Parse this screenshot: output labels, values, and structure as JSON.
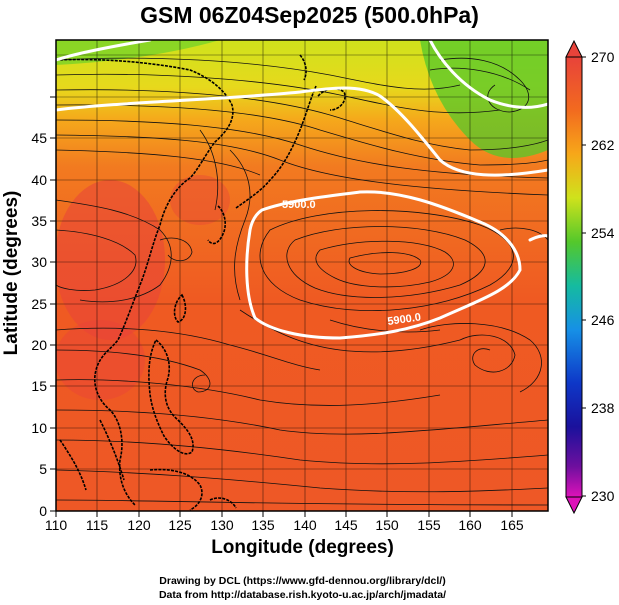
{
  "title": "GSM 06Z04Sep2025 (500.0hPa)",
  "x_axis": {
    "label": "Longitude (degrees)",
    "ticks": [
      "110",
      "115",
      "120",
      "125",
      "130",
      "135",
      "140",
      "145",
      "150",
      "155",
      "160",
      "165"
    ]
  },
  "y_axis": {
    "label": "Latitude  (degrees)",
    "ticks": [
      "0",
      "5",
      "10",
      "15",
      "20",
      "25",
      "30",
      "35",
      "40",
      "45"
    ]
  },
  "colorbar": {
    "ticks": [
      "270",
      "262",
      "254",
      "246",
      "238",
      "230"
    ],
    "colors": [
      "#e8433a",
      "#f26a1f",
      "#f7a719",
      "#cfe21c",
      "#54c82b",
      "#15bba0",
      "#1690e6",
      "#0e38c8",
      "#1a119c",
      "#6d0f9e",
      "#dd12b9"
    ]
  },
  "contours": [
    {
      "label": "5900.0",
      "position": "upper"
    },
    {
      "label": "5900.0",
      "position": "lower"
    }
  ],
  "credits": [
    "Drawing by DCL (https://www.gfd-dennou.org/library/dcl/)",
    "Data from http://database.rish.kyoto-u.ac.jp/arch/jmadata/"
  ]
}
